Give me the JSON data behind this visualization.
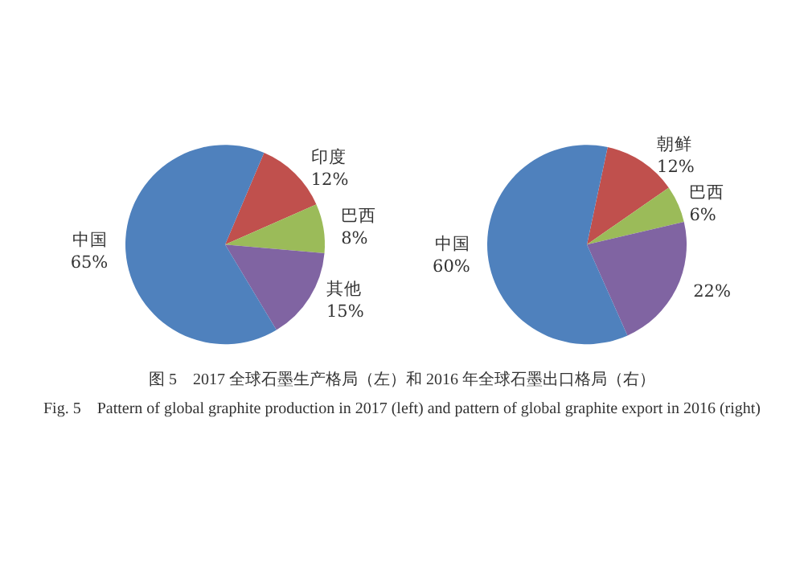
{
  "chart_data": [
    {
      "type": "pie",
      "categories": [
        "印度",
        "巴西",
        "其他",
        "中国"
      ],
      "values": [
        12,
        8,
        15,
        65
      ],
      "value_labels": [
        "12%",
        "8%",
        "15%",
        "65%"
      ],
      "colors": [
        "#c0504d",
        "#9bbb59",
        "#8064a2",
        "#4f81bd"
      ],
      "annotations": [
        "图 5　2017 全球石墨生产格局（左）和 2016 年全球石墨出口格局（右）",
        "Fig. 5　Pattern of global graphite production in 2017 (left) and pattern of global graphite export in 2016 (right)"
      ]
    },
    {
      "type": "pie",
      "categories": [
        "朝鲜",
        "巴西",
        null,
        "中国"
      ],
      "values": [
        12,
        6,
        22,
        60
      ],
      "value_labels": [
        "12%",
        "6%",
        "22%",
        "60%"
      ],
      "colors": [
        "#c0504d",
        "#9bbb59",
        "#8064a2",
        "#4f81bd"
      ]
    }
  ]
}
